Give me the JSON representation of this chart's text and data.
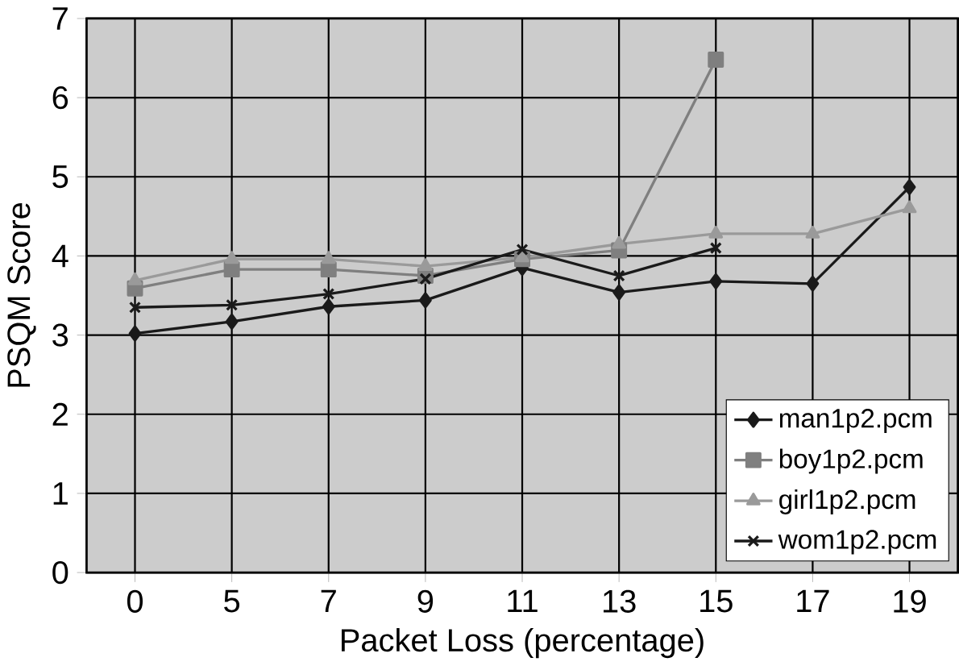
{
  "chart_data": {
    "type": "line",
    "xlabel": "Packet Loss (percentage)",
    "ylabel": "PSQM Score",
    "categories": [
      "0",
      "5",
      "7",
      "9",
      "11",
      "13",
      "15",
      "17",
      "19"
    ],
    "series": [
      {
        "name": "man1p2.pcm",
        "color": "#1a1a1a",
        "marker": "diamond",
        "values": [
          3.02,
          3.17,
          3.36,
          3.44,
          3.85,
          3.54,
          3.68,
          3.65,
          4.87
        ]
      },
      {
        "name": "boy1p2.pcm",
        "color": "#7f7f7f",
        "marker": "square",
        "values": [
          3.59,
          3.83,
          3.83,
          3.75,
          3.96,
          4.07,
          6.48,
          null,
          null
        ]
      },
      {
        "name": "girl1p2.pcm",
        "color": "#9a9a9a",
        "marker": "triangle",
        "values": [
          3.69,
          3.96,
          3.96,
          3.87,
          3.98,
          4.15,
          4.28,
          4.28,
          4.6
        ]
      },
      {
        "name": "wom1p2.pcm",
        "color": "#1a1a1a",
        "marker": "cross",
        "values": [
          3.35,
          3.38,
          3.52,
          3.71,
          4.08,
          3.75,
          4.1,
          null,
          null
        ]
      }
    ],
    "ylim": [
      0,
      7
    ],
    "yticks": [
      0,
      1,
      2,
      3,
      4,
      5,
      6,
      7
    ],
    "grid": true,
    "legend": "bottom right"
  }
}
